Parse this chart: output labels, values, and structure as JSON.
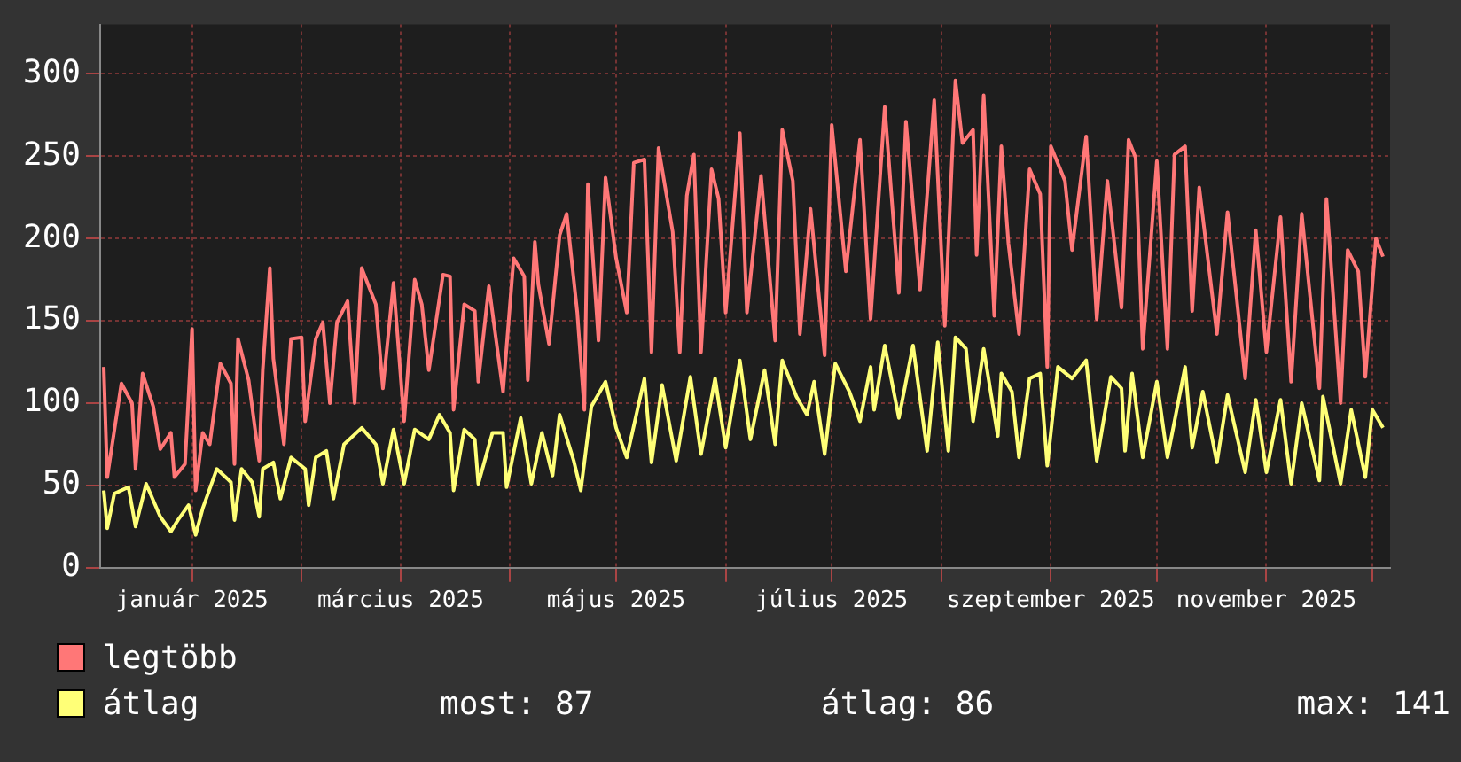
{
  "chart_data": {
    "type": "line",
    "xlim": [
      "2024-12-06",
      "2025-12-06"
    ],
    "xticks": [
      {
        "value": "2025-01-01",
        "label": "január 2025"
      },
      {
        "value": "2025-02-01",
        "label": null
      },
      {
        "value": "2025-03-01",
        "label": "március 2025"
      },
      {
        "value": "2025-04-01",
        "label": null
      },
      {
        "value": "2025-05-01",
        "label": "május 2025"
      },
      {
        "value": "2025-06-01",
        "label": null
      },
      {
        "value": "2025-07-01",
        "label": "július 2025"
      },
      {
        "value": "2025-08-01",
        "label": null
      },
      {
        "value": "2025-09-01",
        "label": "szeptember 2025"
      },
      {
        "value": "2025-10-01",
        "label": null
      },
      {
        "value": "2025-11-01",
        "label": "november 2025"
      },
      {
        "value": "2025-12-01",
        "label": null
      }
    ],
    "ylim": [
      0,
      330
    ],
    "yticks": [
      0,
      50,
      100,
      150,
      200,
      250,
      300
    ],
    "grid": true,
    "legend": "bottom",
    "marker": "none",
    "line_style": "solid",
    "annotations": [
      "most: 87",
      "átlag: 86",
      "max: 141"
    ],
    "series": [
      {
        "name": "legtöbb",
        "color": "#ff7777",
        "x": [
          "2024-12-07",
          "2024-12-08",
          "2024-12-12",
          "2024-12-15",
          "2024-12-16",
          "2024-12-18",
          "2024-12-21",
          "2024-12-23",
          "2024-12-26",
          "2024-12-27",
          "2024-12-30",
          "2025-01-01",
          "2025-01-02",
          "2025-01-04",
          "2025-01-06",
          "2025-01-09",
          "2025-01-12",
          "2025-01-13",
          "2025-01-14",
          "2025-01-17",
          "2025-01-20",
          "2025-01-21",
          "2025-01-23",
          "2025-01-24",
          "2025-01-27",
          "2025-01-29",
          "2025-02-01",
          "2025-02-02",
          "2025-02-05",
          "2025-02-07",
          "2025-02-09",
          "2025-02-11",
          "2025-02-14",
          "2025-02-16",
          "2025-02-18",
          "2025-02-22",
          "2025-02-24",
          "2025-02-27",
          "2025-03-02",
          "2025-03-05",
          "2025-03-07",
          "2025-03-09",
          "2025-03-13",
          "2025-03-15",
          "2025-03-16",
          "2025-03-19",
          "2025-03-22",
          "2025-03-23",
          "2025-03-26",
          "2025-03-30",
          "2025-04-02",
          "2025-04-05",
          "2025-04-06",
          "2025-04-08",
          "2025-04-09",
          "2025-04-12",
          "2025-04-15",
          "2025-04-17",
          "2025-04-20",
          "2025-04-22",
          "2025-04-23",
          "2025-04-26",
          "2025-04-28",
          "2025-05-01",
          "2025-05-04",
          "2025-05-06",
          "2025-05-09",
          "2025-05-11",
          "2025-05-13",
          "2025-05-17",
          "2025-05-19",
          "2025-05-21",
          "2025-05-23",
          "2025-05-25",
          "2025-05-28",
          "2025-05-30",
          "2025-06-01",
          "2025-06-05",
          "2025-06-07",
          "2025-06-11",
          "2025-06-15",
          "2025-06-17",
          "2025-06-20",
          "2025-06-22",
          "2025-06-25",
          "2025-06-29",
          "2025-07-01",
          "2025-07-05",
          "2025-07-09",
          "2025-07-12",
          "2025-07-16",
          "2025-07-20",
          "2025-07-22",
          "2025-07-26",
          "2025-07-30",
          "2025-08-02",
          "2025-08-05",
          "2025-08-07",
          "2025-08-10",
          "2025-08-11",
          "2025-08-13",
          "2025-08-16",
          "2025-08-18",
          "2025-08-20",
          "2025-08-23",
          "2025-08-26",
          "2025-08-29",
          "2025-08-31",
          "2025-09-01",
          "2025-09-05",
          "2025-09-07",
          "2025-09-11",
          "2025-09-14",
          "2025-09-17",
          "2025-09-21",
          "2025-09-23",
          "2025-09-25",
          "2025-09-27",
          "2025-10-01",
          "2025-10-04",
          "2025-10-06",
          "2025-10-09",
          "2025-10-11",
          "2025-10-13",
          "2025-10-18",
          "2025-10-21",
          "2025-10-26",
          "2025-10-29",
          "2025-11-01",
          "2025-11-05",
          "2025-11-08",
          "2025-11-11",
          "2025-11-16",
          "2025-11-18",
          "2025-11-22",
          "2025-11-24",
          "2025-11-27",
          "2025-11-29",
          "2025-12-02",
          "2025-12-04"
        ],
        "values": [
          122,
          55,
          112,
          100,
          60,
          118,
          98,
          72,
          82,
          55,
          63,
          145,
          47,
          82,
          75,
          124,
          112,
          63,
          139,
          114,
          65,
          120,
          182,
          127,
          75,
          139,
          140,
          89,
          139,
          149,
          100,
          149,
          162,
          100,
          182,
          160,
          109,
          173,
          89,
          175,
          160,
          120,
          178,
          177,
          96,
          160,
          156,
          113,
          171,
          107,
          188,
          177,
          114,
          198,
          172,
          136,
          202,
          215,
          155,
          96,
          233,
          138,
          237,
          188,
          155,
          246,
          248,
          131,
          255,
          204,
          131,
          226,
          251,
          131,
          242,
          224,
          155,
          264,
          155,
          238,
          138,
          266,
          235,
          142,
          218,
          129,
          269,
          180,
          260,
          151,
          280,
          167,
          271,
          169,
          284,
          147,
          296,
          258,
          266,
          190,
          287,
          153,
          256,
          197,
          142,
          242,
          227,
          122,
          256,
          235,
          193,
          262,
          151,
          235,
          158,
          260,
          249,
          133,
          247,
          133,
          251,
          256,
          156,
          231,
          142,
          216,
          115,
          205,
          131,
          213,
          113,
          215,
          109,
          224,
          100,
          193,
          180,
          116,
          200,
          189
        ]
      },
      {
        "name": "átlag",
        "color": "#ffff77",
        "x": [
          "2024-12-07",
          "2024-12-08",
          "2024-12-10",
          "2024-12-14",
          "2024-12-16",
          "2024-12-19",
          "2024-12-23",
          "2024-12-26",
          "2024-12-28",
          "2024-12-31",
          "2025-01-02",
          "2025-01-04",
          "2025-01-08",
          "2025-01-12",
          "2025-01-13",
          "2025-01-15",
          "2025-01-18",
          "2025-01-20",
          "2025-01-21",
          "2025-01-24",
          "2025-01-26",
          "2025-01-29",
          "2025-02-02",
          "2025-02-03",
          "2025-02-05",
          "2025-02-08",
          "2025-02-10",
          "2025-02-13",
          "2025-02-18",
          "2025-02-22",
          "2025-02-24",
          "2025-02-27",
          "2025-03-02",
          "2025-03-05",
          "2025-03-09",
          "2025-03-12",
          "2025-03-15",
          "2025-03-16",
          "2025-03-19",
          "2025-03-22",
          "2025-03-23",
          "2025-03-27",
          "2025-03-30",
          "2025-03-31",
          "2025-04-04",
          "2025-04-07",
          "2025-04-10",
          "2025-04-13",
          "2025-04-15",
          "2025-04-19",
          "2025-04-21",
          "2025-04-24",
          "2025-04-28",
          "2025-05-01",
          "2025-05-04",
          "2025-05-09",
          "2025-05-11",
          "2025-05-14",
          "2025-05-18",
          "2025-05-22",
          "2025-05-25",
          "2025-05-29",
          "2025-06-01",
          "2025-06-05",
          "2025-06-08",
          "2025-06-12",
          "2025-06-15",
          "2025-06-17",
          "2025-06-21",
          "2025-06-24",
          "2025-06-26",
          "2025-06-29",
          "2025-07-02",
          "2025-07-06",
          "2025-07-09",
          "2025-07-12",
          "2025-07-13",
          "2025-07-16",
          "2025-07-20",
          "2025-07-24",
          "2025-07-28",
          "2025-07-31",
          "2025-08-03",
          "2025-08-05",
          "2025-08-08",
          "2025-08-10",
          "2025-08-13",
          "2025-08-17",
          "2025-08-18",
          "2025-08-21",
          "2025-08-23",
          "2025-08-26",
          "2025-08-29",
          "2025-08-31",
          "2025-09-03",
          "2025-09-07",
          "2025-09-11",
          "2025-09-14",
          "2025-09-18",
          "2025-09-21",
          "2025-09-22",
          "2025-09-24",
          "2025-09-27",
          "2025-10-01",
          "2025-10-04",
          "2025-10-09",
          "2025-10-11",
          "2025-10-14",
          "2025-10-18",
          "2025-10-21",
          "2025-10-26",
          "2025-10-29",
          "2025-11-01",
          "2025-11-05",
          "2025-11-08",
          "2025-11-11",
          "2025-11-16",
          "2025-11-17",
          "2025-11-22",
          "2025-11-25",
          "2025-11-29",
          "2025-12-01",
          "2025-12-04"
        ],
        "values": [
          47,
          24,
          45,
          49,
          25,
          51,
          31,
          22,
          29,
          38,
          20,
          36,
          60,
          52,
          29,
          60,
          52,
          31,
          60,
          64,
          42,
          67,
          60,
          38,
          67,
          71,
          42,
          75,
          85,
          75,
          51,
          84,
          51,
          84,
          78,
          93,
          82,
          47,
          84,
          78,
          51,
          82,
          82,
          49,
          91,
          51,
          82,
          56,
          93,
          65,
          47,
          98,
          113,
          85,
          67,
          115,
          64,
          111,
          65,
          116,
          69,
          115,
          73,
          126,
          78,
          120,
          75,
          126,
          104,
          93,
          113,
          69,
          124,
          107,
          89,
          122,
          96,
          135,
          91,
          135,
          71,
          137,
          71,
          140,
          133,
          89,
          133,
          80,
          118,
          107,
          67,
          115,
          118,
          62,
          122,
          115,
          126,
          65,
          116,
          109,
          71,
          118,
          67,
          113,
          67,
          122,
          73,
          107,
          64,
          105,
          58,
          102,
          58,
          102,
          51,
          100,
          53,
          104,
          51,
          96,
          55,
          96,
          85
        ]
      }
    ]
  }
}
